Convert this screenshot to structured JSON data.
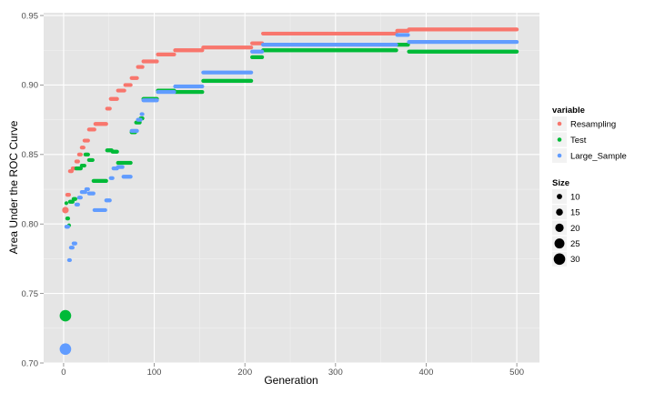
{
  "chart_data": {
    "type": "scatter",
    "title": "",
    "xlabel": "Generation",
    "ylabel": "Area Under the ROC Curve",
    "xlim": [
      -22,
      525
    ],
    "ylim": [
      0.7,
      0.952
    ],
    "xticks": [
      0,
      100,
      200,
      300,
      400,
      500
    ],
    "yticks": [
      0.7,
      0.75,
      0.8,
      0.85,
      0.9,
      0.95
    ],
    "xtick_labels": [
      "0",
      "100",
      "200",
      "300",
      "400",
      "500"
    ],
    "ytick_labels": [
      "0.70",
      "0.75",
      "0.80",
      "0.85",
      "0.90",
      "0.95"
    ],
    "grid": true,
    "background": "#e5e5e5",
    "legend_placement": "right",
    "legend": {
      "color_title": "variable",
      "size_title": "Size",
      "size_values": [
        10,
        15,
        20,
        25,
        30
      ]
    },
    "series": [
      {
        "name": "Resampling",
        "color": "#F8766D",
        "initial_point": {
          "x": 2,
          "y": 0.81,
          "size": 14
        },
        "steps": [
          [
            4,
            0.821
          ],
          [
            7,
            0.838
          ],
          [
            10,
            0.84
          ],
          [
            14,
            0.845
          ],
          [
            17,
            0.85
          ],
          [
            20,
            0.855
          ],
          [
            23,
            0.86
          ],
          [
            28,
            0.868
          ],
          [
            35,
            0.872
          ],
          [
            48,
            0.883
          ],
          [
            52,
            0.89
          ],
          [
            60,
            0.896
          ],
          [
            68,
            0.9
          ],
          [
            75,
            0.905
          ],
          [
            82,
            0.913
          ],
          [
            88,
            0.917
          ],
          [
            104,
            0.922
          ],
          [
            123,
            0.925
          ],
          [
            154,
            0.927
          ],
          [
            206,
            0.927
          ],
          [
            208,
            0.93
          ],
          [
            220,
            0.937
          ],
          [
            367,
            0.937
          ],
          [
            368,
            0.939
          ],
          [
            381,
            0.94
          ],
          [
            500,
            0.94
          ]
        ]
      },
      {
        "name": "Test",
        "color": "#00BA38",
        "initial_point": {
          "x": 2,
          "y": 0.734,
          "size": 30
        },
        "steps": [
          [
            3,
            0.815
          ],
          [
            4,
            0.804
          ],
          [
            6,
            0.799
          ],
          [
            7,
            0.816
          ],
          [
            11,
            0.818
          ],
          [
            14,
            0.84
          ],
          [
            20,
            0.842
          ],
          [
            24,
            0.85
          ],
          [
            28,
            0.846
          ],
          [
            33,
            0.831
          ],
          [
            40,
            0.831
          ],
          [
            48,
            0.853
          ],
          [
            54,
            0.852
          ],
          [
            60,
            0.844
          ],
          [
            68,
            0.844
          ],
          [
            75,
            0.866
          ],
          [
            80,
            0.873
          ],
          [
            85,
            0.876
          ],
          [
            88,
            0.89
          ],
          [
            104,
            0.896
          ],
          [
            123,
            0.895
          ],
          [
            154,
            0.903
          ],
          [
            206,
            0.903
          ],
          [
            208,
            0.92
          ],
          [
            220,
            0.925
          ],
          [
            367,
            0.925
          ],
          [
            368,
            0.929
          ],
          [
            381,
            0.924
          ],
          [
            500,
            0.924
          ]
        ]
      },
      {
        "name": "Large_Sample",
        "color": "#619CFF",
        "initial_point": {
          "x": 2,
          "y": 0.71,
          "size": 30
        },
        "steps": [
          [
            3,
            0.798
          ],
          [
            6,
            0.774
          ],
          [
            8,
            0.783
          ],
          [
            11,
            0.786
          ],
          [
            14,
            0.814
          ],
          [
            17,
            0.819
          ],
          [
            20,
            0.823
          ],
          [
            25,
            0.825
          ],
          [
            28,
            0.822
          ],
          [
            34,
            0.81
          ],
          [
            42,
            0.81
          ],
          [
            47,
            0.817
          ],
          [
            52,
            0.833
          ],
          [
            55,
            0.84
          ],
          [
            60,
            0.841
          ],
          [
            66,
            0.834
          ],
          [
            72,
            0.834
          ],
          [
            75,
            0.867
          ],
          [
            82,
            0.875
          ],
          [
            86,
            0.879
          ],
          [
            88,
            0.889
          ],
          [
            104,
            0.895
          ],
          [
            123,
            0.899
          ],
          [
            154,
            0.909
          ],
          [
            206,
            0.909
          ],
          [
            208,
            0.924
          ],
          [
            220,
            0.929
          ],
          [
            367,
            0.929
          ],
          [
            368,
            0.936
          ],
          [
            381,
            0.931
          ],
          [
            500,
            0.931
          ]
        ]
      }
    ]
  }
}
